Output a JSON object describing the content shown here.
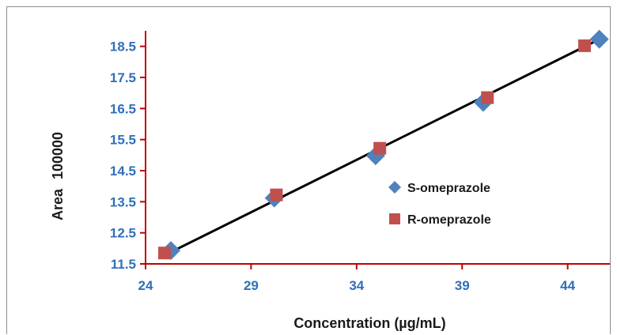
{
  "chart_data": {
    "type": "scatter",
    "title": "",
    "xlabel": "Concentration (µg/mL)",
    "ylabel_prefix": "Area",
    "ylabel_multiplier": "100000",
    "xlim": [
      24,
      46
    ],
    "ylim": [
      11.5,
      19
    ],
    "xticks": [
      24,
      29,
      34,
      39,
      44
    ],
    "yticks": [
      11.5,
      12.5,
      13.5,
      14.5,
      15.5,
      16.5,
      17.5,
      18.5
    ],
    "grid": false,
    "legend_position": "right-middle",
    "series": [
      {
        "name": "S-omeprazole",
        "marker": "diamond",
        "color": "#4f81bd",
        "x": [
          25.2,
          30.1,
          34.9,
          40.0,
          45.5
        ],
        "y": [
          11.93,
          13.62,
          14.98,
          16.7,
          18.73
        ]
      },
      {
        "name": "R-omeprazole",
        "marker": "square",
        "color": "#c0504d",
        "x": [
          24.9,
          30.2,
          35.1,
          40.2,
          44.8
        ],
        "y": [
          11.85,
          13.72,
          15.22,
          16.85,
          18.52
        ]
      }
    ],
    "trendline": {
      "color": "#000000",
      "x": [
        25.2,
        45.3
      ],
      "y": [
        11.88,
        18.66
      ]
    },
    "axis_color": "#c00000"
  }
}
